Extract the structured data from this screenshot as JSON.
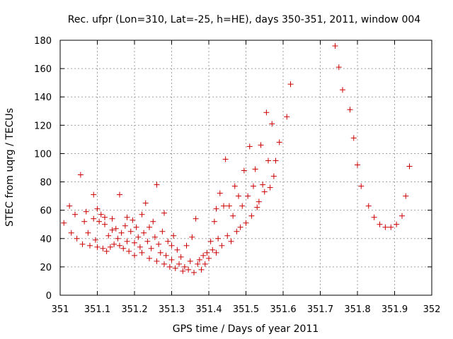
{
  "chart_data": {
    "type": "scatter",
    "title": "Rec. ufpr (Lon=310, Lat=-25, h=HE), days 350-351, 2011, window 004",
    "xlabel": "GPS time / Days of year 2011",
    "ylabel": "STEC from uqrg / TECUs",
    "xlim": [
      351,
      352
    ],
    "ylim": [
      0,
      180
    ],
    "xticks": [
      351,
      351.1,
      351.2,
      351.3,
      351.4,
      351.5,
      351.6,
      351.7,
      351.8,
      351.9,
      352
    ],
    "xtick_labels": [
      "351",
      "351.1",
      "351.2",
      "351.3",
      "351.4",
      "351.5",
      "351.6",
      "351.7",
      "351.8",
      "351.9",
      "352"
    ],
    "yticks": [
      0,
      20,
      40,
      60,
      80,
      100,
      120,
      140,
      160,
      180
    ],
    "ytick_labels": [
      "0",
      "20",
      "40",
      "60",
      "80",
      "100",
      "120",
      "140",
      "160",
      "180"
    ],
    "grid": true,
    "marker": "+",
    "marker_color": "#cc0000",
    "series": [
      {
        "name": "STEC",
        "points": [
          [
            351.01,
            51
          ],
          [
            351.025,
            63
          ],
          [
            351.03,
            44
          ],
          [
            351.04,
            57
          ],
          [
            351.045,
            40
          ],
          [
            351.055,
            85
          ],
          [
            351.06,
            36
          ],
          [
            351.065,
            52
          ],
          [
            351.07,
            59
          ],
          [
            351.075,
            44
          ],
          [
            351.08,
            35
          ],
          [
            351.09,
            71
          ],
          [
            351.09,
            54
          ],
          [
            351.095,
            39
          ],
          [
            351.1,
            34
          ],
          [
            351.1,
            61
          ],
          [
            351.105,
            52
          ],
          [
            351.11,
            57
          ],
          [
            351.115,
            33
          ],
          [
            351.12,
            55
          ],
          [
            351.12,
            50
          ],
          [
            351.125,
            31
          ],
          [
            351.13,
            42
          ],
          [
            351.135,
            34
          ],
          [
            351.14,
            54
          ],
          [
            351.14,
            46
          ],
          [
            351.145,
            36
          ],
          [
            351.15,
            47
          ],
          [
            351.155,
            40
          ],
          [
            351.16,
            71
          ],
          [
            351.16,
            35
          ],
          [
            351.165,
            44
          ],
          [
            351.17,
            33
          ],
          [
            351.175,
            49
          ],
          [
            351.18,
            55
          ],
          [
            351.18,
            38
          ],
          [
            351.185,
            31
          ],
          [
            351.19,
            45
          ],
          [
            351.195,
            53
          ],
          [
            351.2,
            37
          ],
          [
            351.2,
            28
          ],
          [
            351.205,
            48
          ],
          [
            351.21,
            41
          ],
          [
            351.215,
            34
          ],
          [
            351.22,
            57
          ],
          [
            351.22,
            30
          ],
          [
            351.225,
            44
          ],
          [
            351.23,
            65
          ],
          [
            351.235,
            38
          ],
          [
            351.24,
            26
          ],
          [
            351.24,
            48
          ],
          [
            351.245,
            33
          ],
          [
            351.25,
            52
          ],
          [
            351.255,
            41
          ],
          [
            351.26,
            24
          ],
          [
            351.26,
            78
          ],
          [
            351.265,
            36
          ],
          [
            351.27,
            30
          ],
          [
            351.275,
            45
          ],
          [
            351.28,
            22
          ],
          [
            351.28,
            58
          ],
          [
            351.285,
            28
          ],
          [
            351.29,
            38
          ],
          [
            351.295,
            20
          ],
          [
            351.3,
            35
          ],
          [
            351.3,
            25
          ],
          [
            351.305,
            42
          ],
          [
            351.31,
            19
          ],
          [
            351.315,
            32
          ],
          [
            351.32,
            22
          ],
          [
            351.325,
            27
          ],
          [
            351.33,
            17
          ],
          [
            351.335,
            20
          ],
          [
            351.34,
            35
          ],
          [
            351.345,
            18
          ],
          [
            351.35,
            24
          ],
          [
            351.355,
            41
          ],
          [
            351.36,
            16
          ],
          [
            351.365,
            54
          ],
          [
            351.37,
            22
          ],
          [
            351.375,
            25
          ],
          [
            351.38,
            18
          ],
          [
            351.385,
            28
          ],
          [
            351.39,
            22
          ],
          [
            351.395,
            30
          ],
          [
            351.4,
            26
          ],
          [
            351.405,
            38
          ],
          [
            351.41,
            32
          ],
          [
            351.415,
            52
          ],
          [
            351.42,
            30
          ],
          [
            351.42,
            61
          ],
          [
            351.425,
            40
          ],
          [
            351.43,
            72
          ],
          [
            351.435,
            35
          ],
          [
            351.44,
            63
          ],
          [
            351.445,
            96
          ],
          [
            351.45,
            42
          ],
          [
            351.455,
            63
          ],
          [
            351.46,
            38
          ],
          [
            351.465,
            56
          ],
          [
            351.47,
            77
          ],
          [
            351.475,
            45
          ],
          [
            351.48,
            70
          ],
          [
            351.485,
            48
          ],
          [
            351.49,
            63
          ],
          [
            351.495,
            88
          ],
          [
            351.5,
            51
          ],
          [
            351.505,
            70
          ],
          [
            351.51,
            105
          ],
          [
            351.515,
            56
          ],
          [
            351.52,
            77
          ],
          [
            351.525,
            89
          ],
          [
            351.53,
            62
          ],
          [
            351.535,
            66
          ],
          [
            351.54,
            106
          ],
          [
            351.545,
            78
          ],
          [
            351.55,
            73
          ],
          [
            351.555,
            129
          ],
          [
            351.56,
            95
          ],
          [
            351.565,
            76
          ],
          [
            351.57,
            121
          ],
          [
            351.575,
            84
          ],
          [
            351.58,
            95
          ],
          [
            351.59,
            108
          ],
          [
            351.61,
            126
          ],
          [
            351.62,
            149
          ],
          [
            351.74,
            176
          ],
          [
            351.75,
            161
          ],
          [
            351.76,
            145
          ],
          [
            351.78,
            131
          ],
          [
            351.79,
            111
          ],
          [
            351.8,
            92
          ],
          [
            351.81,
            77
          ],
          [
            351.83,
            63
          ],
          [
            351.845,
            55
          ],
          [
            351.86,
            50
          ],
          [
            351.875,
            48
          ],
          [
            351.89,
            48
          ],
          [
            351.905,
            50
          ],
          [
            351.92,
            56
          ],
          [
            351.93,
            70
          ],
          [
            351.94,
            91
          ]
        ]
      }
    ]
  }
}
